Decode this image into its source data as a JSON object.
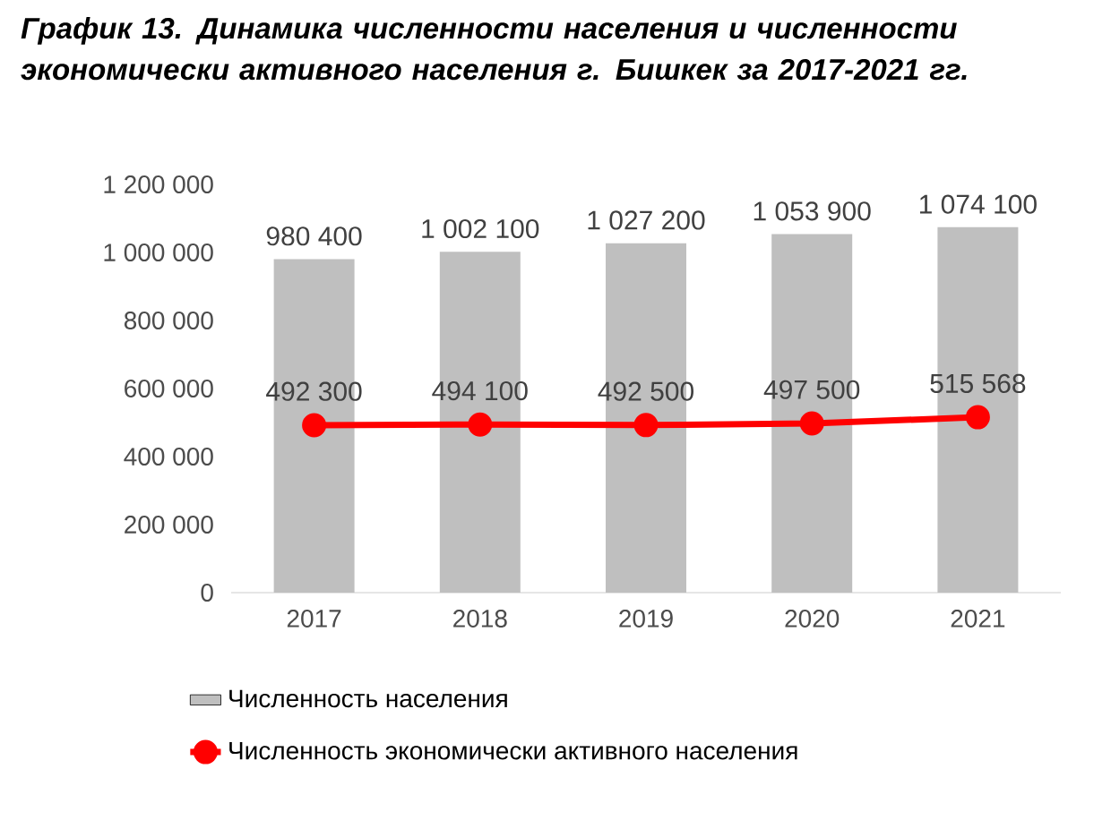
{
  "chart_data": {
    "type": "bar",
    "title": "График 13. Динамика численности населения и численности экономически активного населения г. Бишкек за 2017-2021 гг.",
    "categories": [
      "2017",
      "2018",
      "2019",
      "2020",
      "2021"
    ],
    "series": [
      {
        "name": "Численность населения",
        "color": "#bfbfbf",
        "values": [
          980400,
          1002100,
          1027200,
          1053900,
          1074100
        ],
        "value_labels": [
          "980 400",
          "1 002 100",
          "1 027 200",
          "1 053 900",
          "1 074 100"
        ]
      },
      {
        "name": "Численность экономически активного населения",
        "type": "line",
        "color": "#ff0000",
        "marker": "circle",
        "values": [
          492300,
          494100,
          492500,
          497500,
          515568
        ],
        "value_labels": [
          "492 300",
          "494 100",
          "492 500",
          "497 500",
          "515 568"
        ]
      }
    ],
    "ylim": [
      0,
      1200000
    ],
    "yticks": [
      {
        "value": 0,
        "label": "0"
      },
      {
        "value": 200000,
        "label": "200 000"
      },
      {
        "value": 400000,
        "label": "400 000"
      },
      {
        "value": 600000,
        "label": "600 000"
      },
      {
        "value": 800000,
        "label": "800 000"
      },
      {
        "value": 1000000,
        "label": "1 000 000"
      },
      {
        "value": 1200000,
        "label": "1 200 000"
      }
    ],
    "grid": false,
    "legend": "bottom"
  }
}
